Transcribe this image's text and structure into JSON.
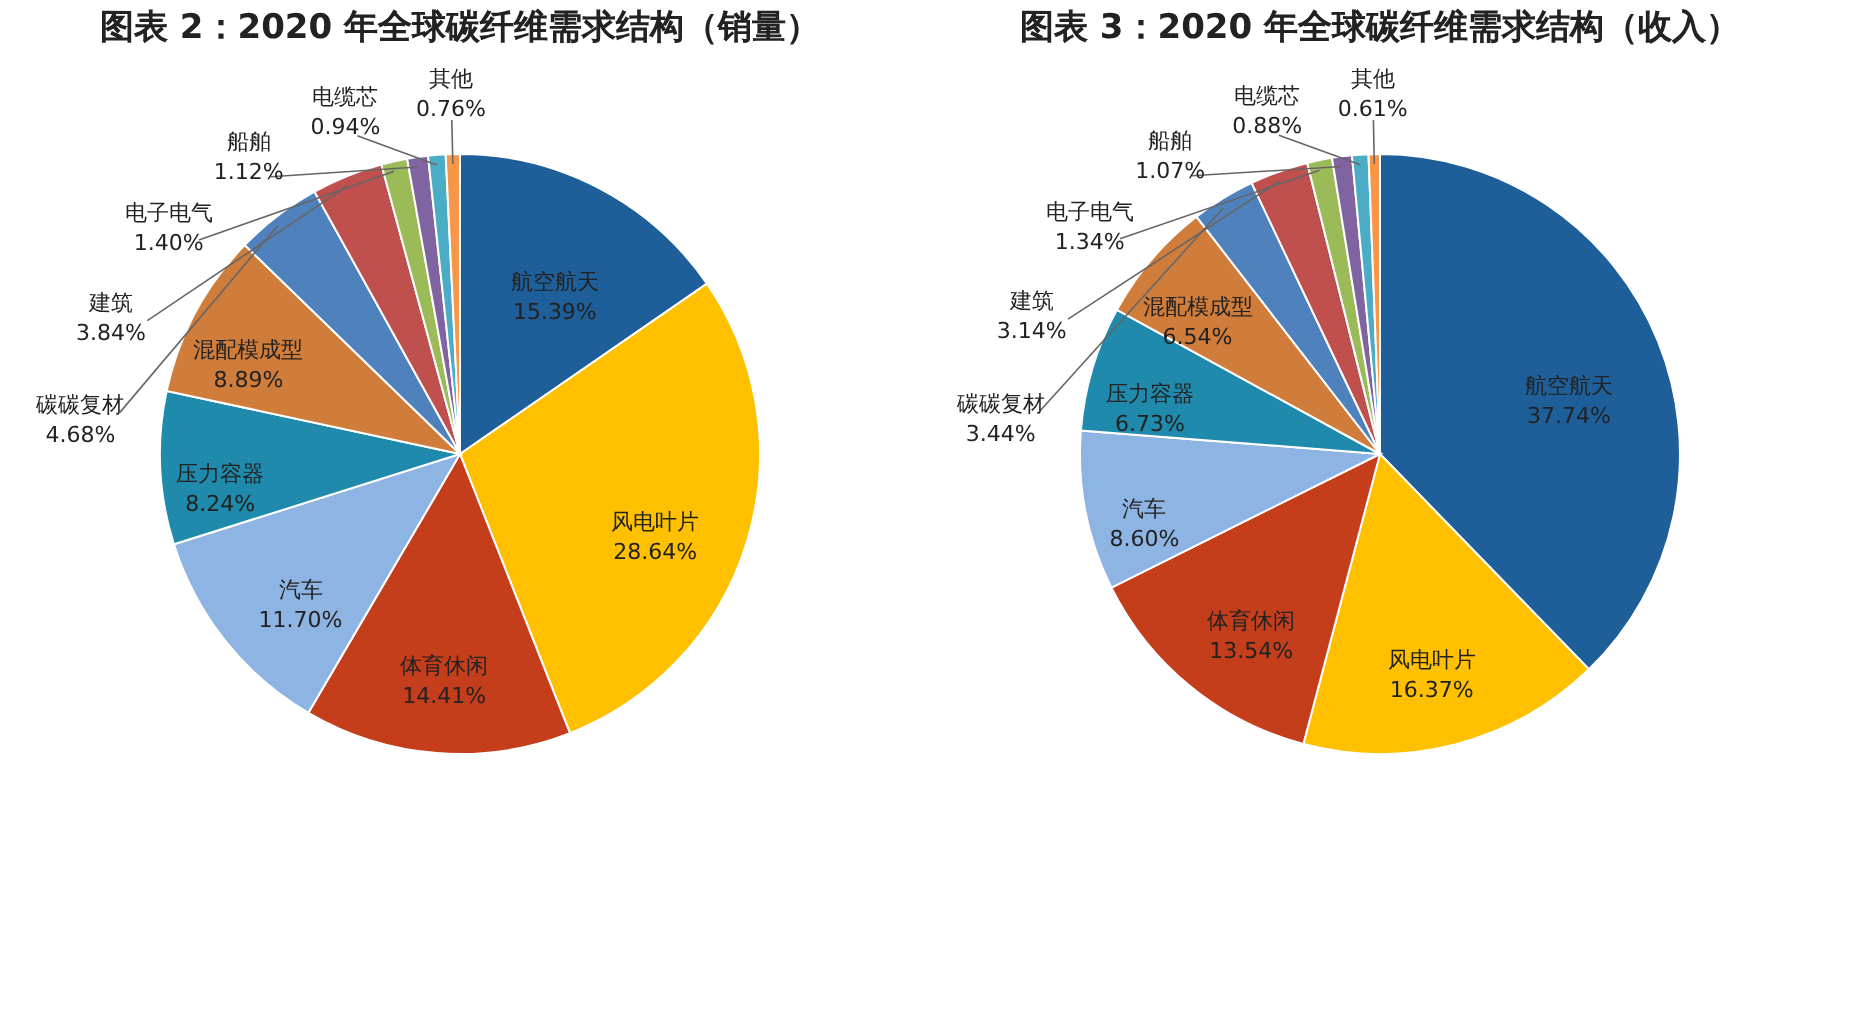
{
  "chart_data": [
    {
      "type": "pie",
      "title": "图表 2：2020 年全球碳纤维需求结构（销量）",
      "categories": [
        "航空航天",
        "风电叶片",
        "体育休闲",
        "汽车",
        "压力容器",
        "混配模成型",
        "碳碳复材",
        "建筑",
        "电子电气",
        "船舶",
        "电缆芯",
        "其他"
      ],
      "values": [
        15.39,
        28.64,
        14.41,
        11.7,
        8.24,
        8.89,
        4.68,
        3.84,
        1.4,
        1.12,
        0.94,
        0.76
      ],
      "value_labels": [
        "15.39%",
        "28.64%",
        "14.41%",
        "11.70%",
        "8.24%",
        "8.89%",
        "4.68%",
        "3.84%",
        "1.40%",
        "1.12%",
        "0.94%",
        "0.76%"
      ],
      "colors": [
        "#1f5f99",
        "#ffc000",
        "#c43e1c",
        "#8eb4e3",
        "#1f8aab",
        "#d07c3a",
        "#4f81bd",
        "#c0504d",
        "#9bbb59",
        "#8064a2",
        "#4bacc6",
        "#f79646"
      ]
    },
    {
      "type": "pie",
      "title": "图表 3：2020 年全球碳纤维需求结构（收入）",
      "categories": [
        "航空航天",
        "风电叶片",
        "体育休闲",
        "汽车",
        "压力容器",
        "混配模成型",
        "碳碳复材",
        "建筑",
        "电子电气",
        "船舶",
        "电缆芯",
        "其他"
      ],
      "values": [
        37.74,
        16.37,
        13.54,
        8.6,
        6.73,
        6.54,
        3.44,
        3.14,
        1.34,
        1.07,
        0.88,
        0.61
      ],
      "value_labels": [
        "37.74%",
        "16.37%",
        "13.54%",
        "8.60%",
        "6.73%",
        "6.54%",
        "3.44%",
        "3.14%",
        "1.34%",
        "1.07%",
        "0.88%",
        "0.61%"
      ],
      "colors": [
        "#1f5f99",
        "#ffc000",
        "#c43e1c",
        "#8eb4e3",
        "#1f8aab",
        "#d07c3a",
        "#4f81bd",
        "#c0504d",
        "#9bbb59",
        "#8064a2",
        "#4bacc6",
        "#f79646"
      ]
    }
  ]
}
